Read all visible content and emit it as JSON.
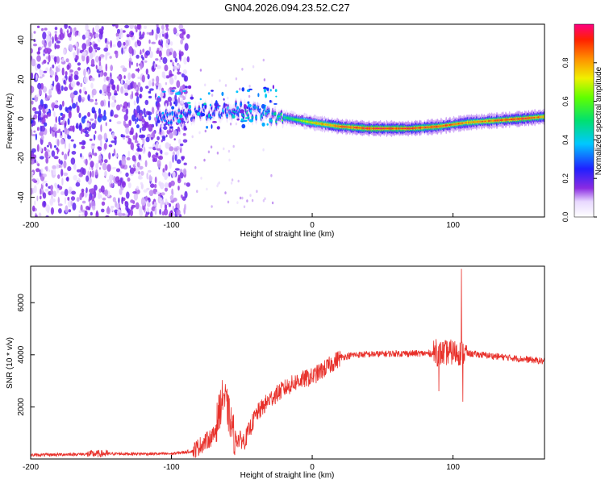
{
  "title": "GN04.2026.094.23.52.C27",
  "colors": {
    "snr_line": "#e8302a",
    "axis": "#000000",
    "background": "#ffffff"
  },
  "chart_data": [
    {
      "type": "heatmap",
      "name": "spectrogram",
      "xlabel": "Height of straight line (km)",
      "ylabel": "Frequency (Hz)",
      "xlim": [
        -200,
        165
      ],
      "ylim": [
        -50,
        48
      ],
      "xticks": [
        -200,
        -100,
        0,
        100
      ],
      "yticks": [
        40,
        20,
        0,
        -20,
        -40
      ],
      "noise_region_km": [
        -200,
        -88
      ],
      "ridge": {
        "description_points": [
          {
            "x": -110,
            "f": 0,
            "amp": 0.35
          },
          {
            "x": -80,
            "f": 3,
            "amp": 0.3
          },
          {
            "x": -55,
            "f": 5,
            "amp": 0.4
          },
          {
            "x": -30,
            "f": 2,
            "amp": 0.45
          },
          {
            "x": -15,
            "f": 0,
            "amp": 0.6
          },
          {
            "x": 0,
            "f": -2,
            "amp": 0.8
          },
          {
            "x": 20,
            "f": -4,
            "amp": 0.95
          },
          {
            "x": 40,
            "f": -5,
            "amp": 1.0
          },
          {
            "x": 70,
            "f": -5,
            "amp": 1.0
          },
          {
            "x": 90,
            "f": -4,
            "amp": 0.95
          },
          {
            "x": 110,
            "f": -2,
            "amp": 0.9
          },
          {
            "x": 130,
            "f": -1,
            "amp": 0.95
          },
          {
            "x": 150,
            "f": 0,
            "amp": 1.0
          },
          {
            "x": 165,
            "f": 1,
            "amp": 0.9
          }
        ]
      },
      "colorbar": {
        "label": "Normalized spectral amplitude",
        "ticks": [
          0.0,
          0.2,
          0.4,
          0.6,
          0.8
        ],
        "range": [
          0,
          1
        ]
      }
    },
    {
      "type": "line",
      "name": "snr",
      "xlabel": "Height of straight line (km)",
      "ylabel": "SNR (10 * v/v)",
      "xlim": [
        -200,
        165
      ],
      "ylim": [
        0,
        7400
      ],
      "xticks": [
        -200,
        -100,
        0,
        100
      ],
      "yticks": [
        2000,
        4000,
        6000
      ],
      "envelope": [
        {
          "x": -200,
          "y": 150
        },
        {
          "x": -150,
          "y": 200
        },
        {
          "x": -100,
          "y": 200
        },
        {
          "x": -85,
          "y": 300
        },
        {
          "x": -70,
          "y": 900
        },
        {
          "x": -63,
          "y": 2500
        },
        {
          "x": -55,
          "y": 800
        },
        {
          "x": -48,
          "y": 700
        },
        {
          "x": -40,
          "y": 1700
        },
        {
          "x": -30,
          "y": 2300
        },
        {
          "x": -20,
          "y": 2700
        },
        {
          "x": -10,
          "y": 3000
        },
        {
          "x": 0,
          "y": 3150
        },
        {
          "x": 10,
          "y": 3500
        },
        {
          "x": 20,
          "y": 3900
        },
        {
          "x": 30,
          "y": 4000
        },
        {
          "x": 60,
          "y": 4050
        },
        {
          "x": 90,
          "y": 4050
        },
        {
          "x": 100,
          "y": 4100
        },
        {
          "x": 120,
          "y": 4000
        },
        {
          "x": 165,
          "y": 3750
        }
      ],
      "spikes": [
        {
          "x": 106,
          "y": 7300
        },
        {
          "x": 107,
          "y": 2200
        },
        {
          "x": 88,
          "y": 4600
        },
        {
          "x": 90,
          "y": 2600
        }
      ]
    }
  ]
}
